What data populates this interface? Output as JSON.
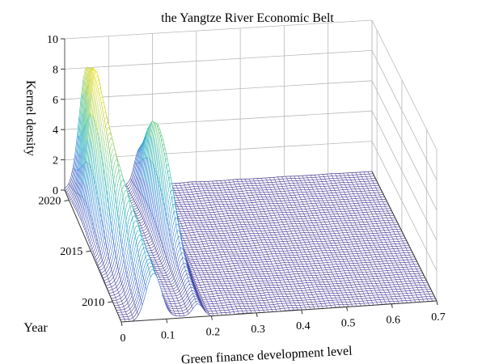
{
  "chart_data": {
    "type": "surface",
    "title": "the Yangtze River Economic Belt",
    "xlabel": "Green finance development level",
    "ylabel": "Year",
    "zlabel": "Kernel density",
    "xlim": [
      0,
      0.7
    ],
    "ylim": [
      2008,
      2021
    ],
    "zlim": [
      0,
      10
    ],
    "x_ticks": [
      "0",
      "0.1",
      "0.2",
      "0.3",
      "0.4",
      "0.5",
      "0.6",
      "0.7"
    ],
    "y_ticks": [
      "2010",
      "2015",
      "2020"
    ],
    "z_ticks": [
      "0",
      "2",
      "4",
      "6",
      "8",
      "10"
    ],
    "grid": true,
    "colormap": [
      "#3b2a8c",
      "#2f6fd6",
      "#15a7c1",
      "#4cc38a",
      "#c4d33b",
      "#f5e31a"
    ],
    "mesh_years": [
      2008,
      2009,
      2010,
      2011,
      2012,
      2013,
      2014,
      2015,
      2016,
      2017,
      2018,
      2019,
      2020,
      2021
    ],
    "peak_x": [
      0.072,
      0.07,
      0.066,
      0.062,
      0.056,
      0.05,
      0.045,
      0.042,
      0.04,
      0.04,
      0.042,
      0.045,
      0.048,
      0.05
    ],
    "peak_density": [
      3.0,
      3.4,
      3.9,
      4.6,
      5.4,
      6.2,
      7.0,
      7.8,
      8.6,
      9.3,
      9.8,
      9.4,
      8.7,
      8.1
    ],
    "secondary_peak_x": 0.17,
    "secondary_peak_density": [
      0.8,
      0.9,
      1.2,
      1.6,
      2.4,
      3.5,
      4.8,
      5.9,
      6.6,
      6.9,
      6.4,
      5.2,
      3.6,
      2.4
    ]
  }
}
